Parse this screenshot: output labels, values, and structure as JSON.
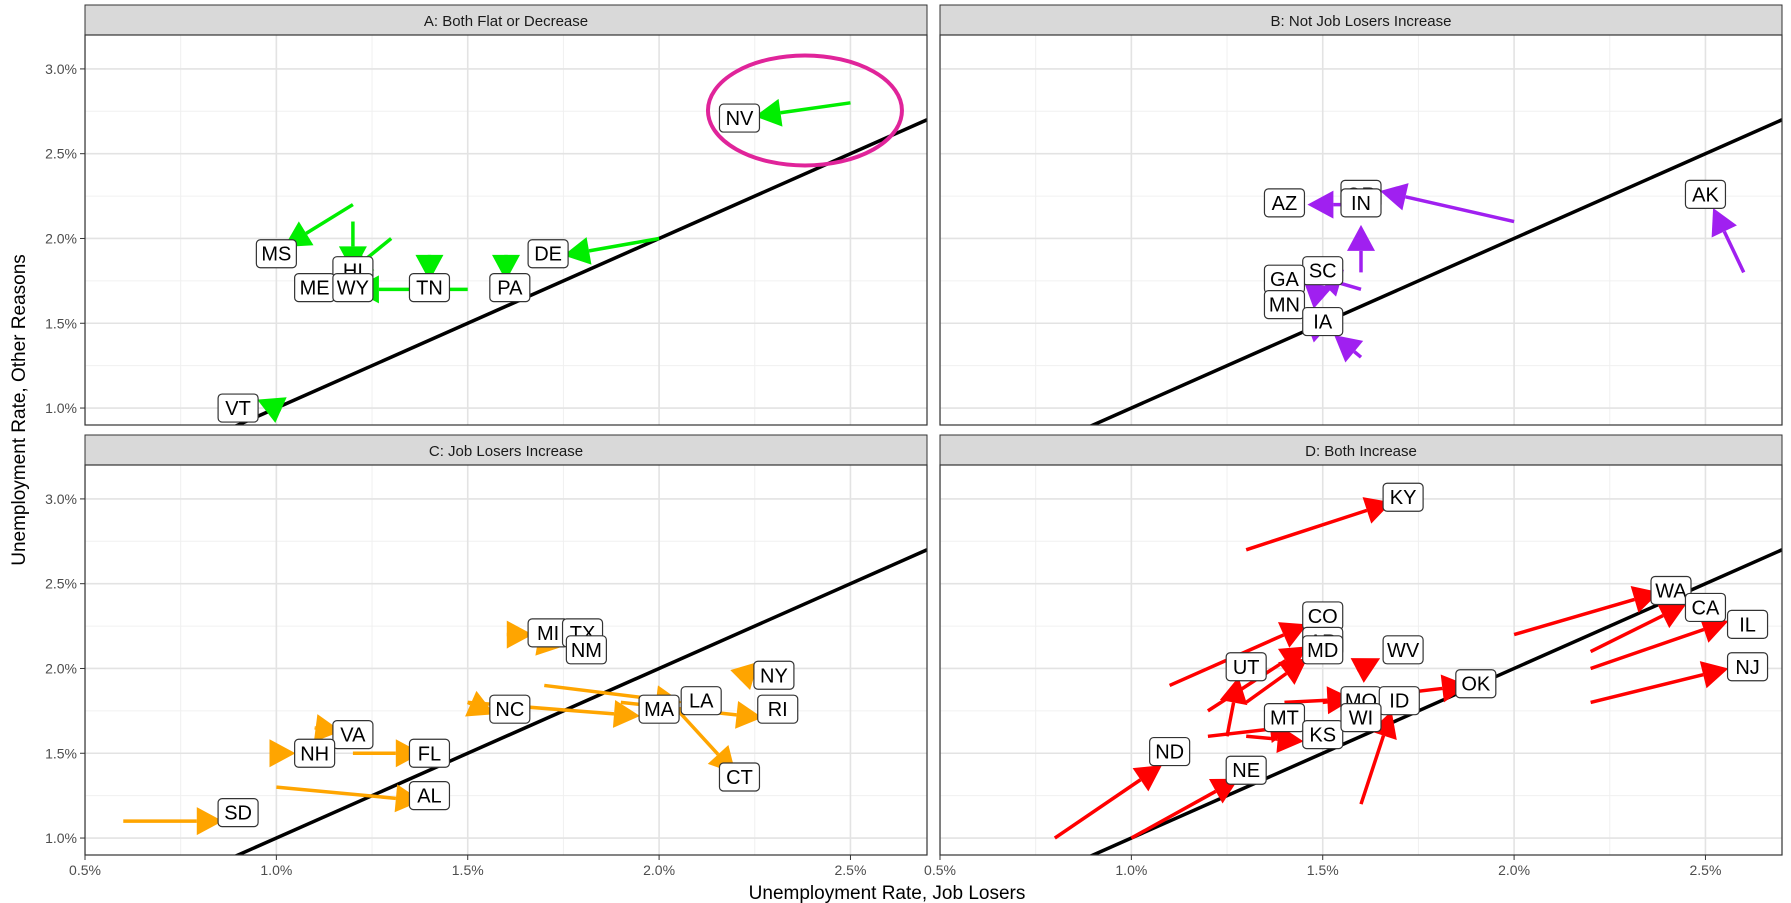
{
  "chart_data": {
    "type": "scatter",
    "xlabel": "Unemployment Rate, Job Losers",
    "ylabel": "Unemployment Rate, Other Reasons",
    "xlim": [
      0.005,
      0.027
    ],
    "ylim": [
      0.009,
      0.032
    ],
    "x_ticks": [
      0.005,
      0.01,
      0.015,
      0.02,
      0.025
    ],
    "x_tick_labels": [
      "0.5%",
      "1.0%",
      "1.5%",
      "2.0%",
      "2.5%"
    ],
    "y_ticks": [
      0.01,
      0.015,
      0.02,
      0.025,
      0.03
    ],
    "y_tick_labels": [
      "1.0%",
      "1.5%",
      "2.0%",
      "2.5%",
      "3.0%"
    ],
    "grid": true,
    "reference_line": {
      "slope": 1,
      "intercept": 0,
      "color": "#000000"
    },
    "panels": [
      {
        "title": "A: Both Flat or Decrease",
        "color": "#00ee00",
        "highlight": {
          "label": "NV",
          "color": "#e0249a"
        },
        "arrows": [
          {
            "label": "NV",
            "from": [
              0.025,
              0.028
            ],
            "to": [
              0.0225,
              0.0272
            ]
          },
          {
            "label": "DE",
            "from": [
              0.02,
              0.02
            ],
            "to": [
              0.0175,
              0.019
            ]
          },
          {
            "label": "MS",
            "from": [
              0.012,
              0.022
            ],
            "to": [
              0.0102,
              0.0195
            ]
          },
          {
            "label": "HI",
            "from": [
              0.012,
              0.021
            ],
            "to": [
              0.012,
              0.018
            ]
          },
          {
            "label": "ME",
            "from": [
              0.013,
              0.02
            ],
            "to": [
              0.0118,
              0.0178
            ]
          },
          {
            "label": "WY",
            "from": [
              0.015,
              0.017
            ],
            "to": [
              0.012,
              0.017
            ]
          },
          {
            "label": "TN",
            "from": [
              0.014,
              0.0185
            ],
            "to": [
              0.014,
              0.0175
            ]
          },
          {
            "label": "PA",
            "from": [
              0.016,
              0.0185
            ],
            "to": [
              0.016,
              0.0175
            ]
          },
          {
            "label": "VT",
            "from": [
              0.01,
              0.01
            ],
            "to": [
              0.0095,
              0.0105
            ]
          }
        ],
        "labels": [
          {
            "label": "NV",
            "x": 0.0221,
            "y": 0.0271
          },
          {
            "label": "DE",
            "x": 0.0171,
            "y": 0.0191
          },
          {
            "label": "MS",
            "x": 0.01,
            "y": 0.0191
          },
          {
            "label": "HI",
            "x": 0.012,
            "y": 0.0181
          },
          {
            "label": "ME",
            "x": 0.011,
            "y": 0.0171
          },
          {
            "label": "WY",
            "x": 0.012,
            "y": 0.0171
          },
          {
            "label": "TN",
            "x": 0.014,
            "y": 0.0171
          },
          {
            "label": "PA",
            "x": 0.0161,
            "y": 0.0171
          },
          {
            "label": "VT",
            "x": 0.009,
            "y": 0.01
          }
        ]
      },
      {
        "title": "B: Not Job Losers Increase",
        "color": "#a020f0",
        "arrows": [
          {
            "label": "OR",
            "from": [
              0.02,
              0.021
            ],
            "to": [
              0.0165,
              0.0228
            ]
          },
          {
            "label": "AZ",
            "from": [
              0.016,
              0.022
            ],
            "to": [
              0.0146,
              0.022
            ]
          },
          {
            "label": "IN",
            "from": [
              0.016,
              0.018
            ],
            "to": [
              0.016,
              0.0208
            ]
          },
          {
            "label": "AK",
            "from": [
              0.026,
              0.018
            ],
            "to": [
              0.0252,
              0.0218
            ]
          },
          {
            "label": "SC",
            "from": [
              0.016,
              0.017
            ],
            "to": [
              0.0148,
              0.0178
            ]
          },
          {
            "label": "GA",
            "from": [
              0.015,
              0.0165
            ],
            "to": [
              0.0145,
              0.0175
            ]
          },
          {
            "label": "MN",
            "from": [
              0.015,
              0.0145
            ],
            "to": [
              0.0145,
              0.0155
            ]
          },
          {
            "label": "IA",
            "from": [
              0.016,
              0.013
            ],
            "to": [
              0.0153,
              0.0143
            ]
          }
        ],
        "labels": [
          {
            "label": "OR",
            "x": 0.016,
            "y": 0.0226
          },
          {
            "label": "AZ",
            "x": 0.014,
            "y": 0.0221
          },
          {
            "label": "IN",
            "x": 0.016,
            "y": 0.0221
          },
          {
            "label": "AK",
            "x": 0.025,
            "y": 0.0226
          },
          {
            "label": "SC",
            "x": 0.015,
            "y": 0.0181
          },
          {
            "label": "GA",
            "x": 0.014,
            "y": 0.0176
          },
          {
            "label": "MN",
            "x": 0.014,
            "y": 0.0161
          },
          {
            "label": "IA",
            "x": 0.015,
            "y": 0.0151
          }
        ]
      },
      {
        "title": "C: Job Losers Increase",
        "color": "#ffa500",
        "arrows": [
          {
            "label": "MI",
            "from": [
              0.0162,
              0.022
            ],
            "to": [
              0.0167,
              0.022
            ]
          },
          {
            "label": "TX",
            "from": [
              0.017,
              0.022
            ],
            "to": [
              0.0175,
              0.022
            ]
          },
          {
            "label": "NM",
            "from": [
              0.017,
              0.0215
            ],
            "to": [
              0.0175,
              0.0213
            ]
          },
          {
            "label": "NY",
            "from": [
              0.0222,
              0.0195
            ],
            "to": [
              0.0226,
              0.0204
            ]
          },
          {
            "label": "NC",
            "from": [
              0.015,
              0.018
            ],
            "to": [
              0.0157,
              0.0173
            ]
          },
          {
            "label": "LA",
            "from": [
              0.017,
              0.019
            ],
            "to": [
              0.0206,
              0.018
            ]
          },
          {
            "label": "MA",
            "from": [
              0.015,
              0.018
            ],
            "to": [
              0.0195,
              0.0172
            ]
          },
          {
            "label": "RI",
            "from": [
              0.019,
              0.018
            ],
            "to": [
              0.0227,
              0.0171
            ]
          },
          {
            "label": "CT",
            "from": [
              0.0205,
              0.0175
            ],
            "to": [
              0.022,
              0.0138
            ]
          },
          {
            "label": "VA",
            "from": [
              0.011,
              0.0165
            ],
            "to": [
              0.0117,
              0.0163
            ]
          },
          {
            "label": "NH",
            "from": [
              0.01,
              0.015
            ],
            "to": [
              0.0105,
              0.015
            ]
          },
          {
            "label": "FL",
            "from": [
              0.012,
              0.015
            ],
            "to": [
              0.0138,
              0.015
            ]
          },
          {
            "label": "AL",
            "from": [
              0.01,
              0.013
            ],
            "to": [
              0.0138,
              0.0122
            ]
          },
          {
            "label": "SD",
            "from": [
              0.006,
              0.011
            ],
            "to": [
              0.0086,
              0.011
            ]
          }
        ],
        "labels": [
          {
            "label": "MI",
            "x": 0.0171,
            "y": 0.0221
          },
          {
            "label": "TX",
            "x": 0.018,
            "y": 0.0221
          },
          {
            "label": "NM",
            "x": 0.0181,
            "y": 0.0211
          },
          {
            "label": "NY",
            "x": 0.023,
            "y": 0.0196
          },
          {
            "label": "NC",
            "x": 0.0161,
            "y": 0.0176
          },
          {
            "label": "LA",
            "x": 0.0211,
            "y": 0.0181
          },
          {
            "label": "MA",
            "x": 0.02,
            "y": 0.0176
          },
          {
            "label": "RI",
            "x": 0.0231,
            "y": 0.0176
          },
          {
            "label": "CT",
            "x": 0.0221,
            "y": 0.0136
          },
          {
            "label": "VA",
            "x": 0.012,
            "y": 0.0161
          },
          {
            "label": "NH",
            "x": 0.011,
            "y": 0.015
          },
          {
            "label": "FL",
            "x": 0.014,
            "y": 0.015
          },
          {
            "label": "AL",
            "x": 0.014,
            "y": 0.0125
          },
          {
            "label": "SD",
            "x": 0.009,
            "y": 0.0115
          }
        ]
      },
      {
        "title": "D: Both Increase",
        "color": "#ff0000",
        "arrows": [
          {
            "label": "KY",
            "from": [
              0.013,
              0.027
            ],
            "to": [
              0.0168,
              0.0298
            ]
          },
          {
            "label": "WA",
            "from": [
              0.02,
              0.022
            ],
            "to": [
              0.0238,
              0.0245
            ]
          },
          {
            "label": "CA",
            "from": [
              0.022,
              0.021
            ],
            "to": [
              0.0245,
              0.0238
            ]
          },
          {
            "label": "IL",
            "from": [
              0.022,
              0.02
            ],
            "to": [
              0.0256,
              0.0228
            ]
          },
          {
            "label": "NJ",
            "from": [
              0.022,
              0.018
            ],
            "to": [
              0.0256,
              0.02
            ]
          },
          {
            "label": "CO",
            "from": [
              0.011,
              0.019
            ],
            "to": [
              0.0146,
              0.0226
            ]
          },
          {
            "label": "AR",
            "from": [
              0.012,
              0.0175
            ],
            "to": [
              0.0146,
              0.0213
            ]
          },
          {
            "label": "MD",
            "from": [
              0.013,
              0.018
            ],
            "to": [
              0.0146,
              0.0206
            ]
          },
          {
            "label": "WV",
            "from": [
              0.016,
              0.02
            ],
            "to": [
              0.0165,
              0.0206
            ]
          },
          {
            "label": "UT",
            "from": [
              0.0125,
              0.016
            ],
            "to": [
              0.0128,
              0.0195
            ]
          },
          {
            "label": "OK",
            "from": [
              0.015,
              0.018
            ],
            "to": [
              0.0188,
              0.019
            ]
          },
          {
            "label": "MO",
            "from": [
              0.014,
              0.018
            ],
            "to": [
              0.0158,
              0.0182
            ]
          },
          {
            "label": "ID",
            "from": [
              0.016,
              0.017
            ],
            "to": [
              0.0167,
              0.0182
            ]
          },
          {
            "label": "MT",
            "from": [
              0.012,
              0.016
            ],
            "to": [
              0.0143,
              0.0166
            ]
          },
          {
            "label": "KS",
            "from": [
              0.013,
              0.016
            ],
            "to": [
              0.0145,
              0.0157
            ]
          },
          {
            "label": "WI",
            "from": [
              0.016,
              0.012
            ],
            "to": [
              0.0168,
              0.0175
            ]
          },
          {
            "label": "NE",
            "from": [
              0.01,
              0.01
            ],
            "to": [
              0.0128,
              0.0135
            ]
          },
          {
            "label": "ND",
            "from": [
              0.008,
              0.01
            ],
            "to": [
              0.0108,
              0.0143
            ]
          }
        ],
        "labels": [
          {
            "label": "KY",
            "x": 0.0171,
            "y": 0.0301
          },
          {
            "label": "WA",
            "x": 0.0241,
            "y": 0.0246
          },
          {
            "label": "CA",
            "x": 0.025,
            "y": 0.0236
          },
          {
            "label": "IL",
            "x": 0.0261,
            "y": 0.0226
          },
          {
            "label": "NJ",
            "x": 0.0261,
            "y": 0.0201
          },
          {
            "label": "CO",
            "x": 0.015,
            "y": 0.0231
          },
          {
            "label": "AR",
            "x": 0.015,
            "y": 0.0216
          },
          {
            "label": "MD",
            "x": 0.015,
            "y": 0.0211
          },
          {
            "label": "WV",
            "x": 0.0171,
            "y": 0.0211
          },
          {
            "label": "UT",
            "x": 0.013,
            "y": 0.0201
          },
          {
            "label": "OK",
            "x": 0.019,
            "y": 0.0191
          },
          {
            "label": "MO",
            "x": 0.016,
            "y": 0.0181
          },
          {
            "label": "ID",
            "x": 0.017,
            "y": 0.0181
          },
          {
            "label": "MT",
            "x": 0.014,
            "y": 0.0171
          },
          {
            "label": "KS",
            "x": 0.015,
            "y": 0.0161
          },
          {
            "label": "WI",
            "x": 0.016,
            "y": 0.0171
          },
          {
            "label": "NE",
            "x": 0.013,
            "y": 0.014
          },
          {
            "label": "ND",
            "x": 0.011,
            "y": 0.0151
          }
        ]
      }
    ]
  }
}
